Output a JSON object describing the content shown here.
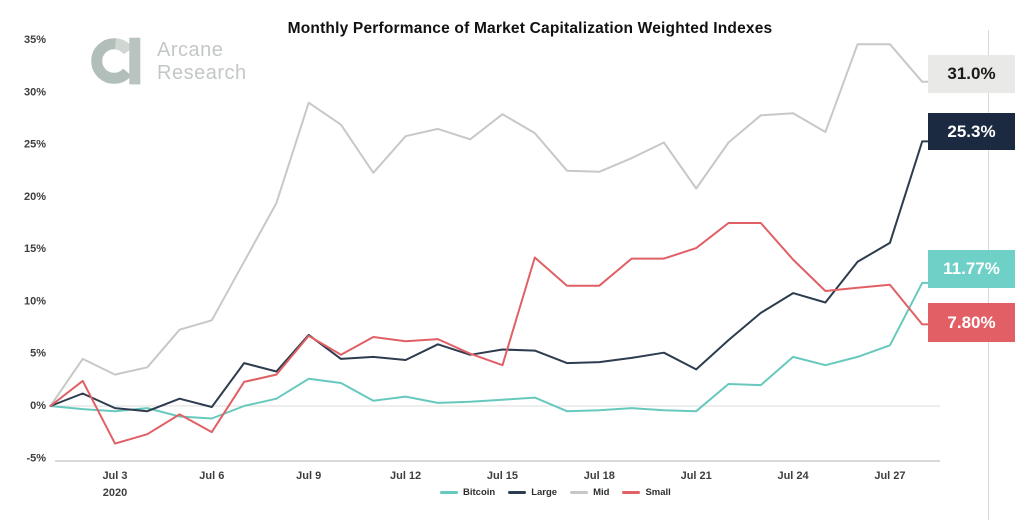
{
  "title": "Monthly Performance of Market Capitalization Weighted Indexes",
  "logo": {
    "line1": "Arcane",
    "line2": "Research"
  },
  "chart_data": {
    "type": "line",
    "x": [
      "Jul 1",
      "Jul 2",
      "Jul 3",
      "Jul 4",
      "Jul 5",
      "Jul 6",
      "Jul 7",
      "Jul 8",
      "Jul 9",
      "Jul 10",
      "Jul 11",
      "Jul 12",
      "Jul 13",
      "Jul 14",
      "Jul 15",
      "Jul 16",
      "Jul 17",
      "Jul 18",
      "Jul 19",
      "Jul 20",
      "Jul 21",
      "Jul 22",
      "Jul 23",
      "Jul 24",
      "Jul 25",
      "Jul 26",
      "Jul 27",
      "Jul 28"
    ],
    "year": "2020",
    "x_tick_labels": [
      "Jul 3",
      "Jul 6",
      "Jul 9",
      "Jul 12",
      "Jul 15",
      "Jul 18",
      "Jul 21",
      "Jul 24",
      "Jul 27"
    ],
    "x_tick_sublabel": "2020",
    "y_ticks": [
      35,
      30,
      25,
      20,
      15,
      10,
      5,
      0,
      -5
    ],
    "y_tick_suffix": "%",
    "ylim": [
      -5,
      35
    ],
    "grid": "zero line only",
    "legend_position": "bottom-center",
    "series": [
      {
        "name": "Bitcoin",
        "color": "#67c9be",
        "box_bg": "#6ed0c6",
        "box_text": "#ffffff",
        "end_label": "11.77%",
        "values": [
          0,
          -0.3,
          -0.5,
          -0.2,
          -1.0,
          -1.2,
          0.0,
          0.7,
          2.6,
          2.2,
          0.5,
          0.9,
          0.3,
          0.4,
          0.6,
          0.8,
          -0.5,
          -0.4,
          -0.2,
          -0.4,
          -0.5,
          2.1,
          2.0,
          4.7,
          3.9,
          4.7,
          5.8,
          11.77
        ]
      },
      {
        "name": "Large",
        "color": "#2d3c4e",
        "box_bg": "#1b2a40",
        "box_text": "#ffffff",
        "end_label": "25.3%",
        "values": [
          0,
          1.2,
          -0.2,
          -0.5,
          0.7,
          -0.1,
          4.1,
          3.3,
          6.8,
          4.5,
          4.7,
          4.4,
          5.9,
          4.9,
          5.4,
          5.3,
          4.1,
          4.2,
          4.6,
          5.1,
          3.5,
          6.3,
          8.9,
          10.8,
          9.9,
          13.8,
          15.6,
          25.3
        ]
      },
      {
        "name": "Mid",
        "color": "#c8c8c6",
        "box_bg": "#e9e9e7",
        "box_text": "#1c1c1c",
        "end_label": "31.0%",
        "values": [
          0,
          4.5,
          3.0,
          3.7,
          7.3,
          8.2,
          13.8,
          19.4,
          29.0,
          26.9,
          22.3,
          25.8,
          26.5,
          25.5,
          27.9,
          26.1,
          22.5,
          22.4,
          23.7,
          25.2,
          20.8,
          25.2,
          27.8,
          28.0,
          26.2,
          34.6,
          34.6,
          31.0
        ]
      },
      {
        "name": "Small",
        "color": "#e06065",
        "box_bg": "#e26065",
        "box_text": "#ffffff",
        "end_label": "7.80%",
        "values": [
          0,
          2.4,
          -3.6,
          -2.7,
          -0.8,
          -2.5,
          2.3,
          3.0,
          6.7,
          4.9,
          6.6,
          6.2,
          6.4,
          5.0,
          3.9,
          14.2,
          11.5,
          11.5,
          14.1,
          14.1,
          15.1,
          17.5,
          17.5,
          14.0,
          11.0,
          11.3,
          11.6,
          7.8
        ]
      }
    ]
  }
}
